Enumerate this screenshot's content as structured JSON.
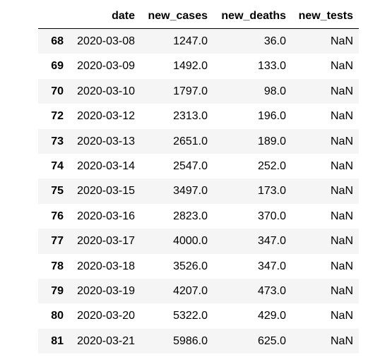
{
  "table": {
    "columns": [
      "",
      "date",
      "new_cases",
      "new_deaths",
      "new_tests"
    ],
    "rows": [
      {
        "index": "68",
        "date": "2020-03-08",
        "new_cases": "1247.0",
        "new_deaths": "36.0",
        "new_tests": "NaN"
      },
      {
        "index": "69",
        "date": "2020-03-09",
        "new_cases": "1492.0",
        "new_deaths": "133.0",
        "new_tests": "NaN"
      },
      {
        "index": "70",
        "date": "2020-03-10",
        "new_cases": "1797.0",
        "new_deaths": "98.0",
        "new_tests": "NaN"
      },
      {
        "index": "72",
        "date": "2020-03-12",
        "new_cases": "2313.0",
        "new_deaths": "196.0",
        "new_tests": "NaN"
      },
      {
        "index": "73",
        "date": "2020-03-13",
        "new_cases": "2651.0",
        "new_deaths": "189.0",
        "new_tests": "NaN"
      },
      {
        "index": "74",
        "date": "2020-03-14",
        "new_cases": "2547.0",
        "new_deaths": "252.0",
        "new_tests": "NaN"
      },
      {
        "index": "75",
        "date": "2020-03-15",
        "new_cases": "3497.0",
        "new_deaths": "173.0",
        "new_tests": "NaN"
      },
      {
        "index": "76",
        "date": "2020-03-16",
        "new_cases": "2823.0",
        "new_deaths": "370.0",
        "new_tests": "NaN"
      },
      {
        "index": "77",
        "date": "2020-03-17",
        "new_cases": "4000.0",
        "new_deaths": "347.0",
        "new_tests": "NaN"
      },
      {
        "index": "78",
        "date": "2020-03-18",
        "new_cases": "3526.0",
        "new_deaths": "347.0",
        "new_tests": "NaN"
      },
      {
        "index": "79",
        "date": "2020-03-19",
        "new_cases": "4207.0",
        "new_deaths": "473.0",
        "new_tests": "NaN"
      },
      {
        "index": "80",
        "date": "2020-03-20",
        "new_cases": "5322.0",
        "new_deaths": "429.0",
        "new_tests": "NaN"
      },
      {
        "index": "81",
        "date": "2020-03-21",
        "new_cases": "5986.0",
        "new_deaths": "625.0",
        "new_tests": "NaN"
      }
    ]
  }
}
